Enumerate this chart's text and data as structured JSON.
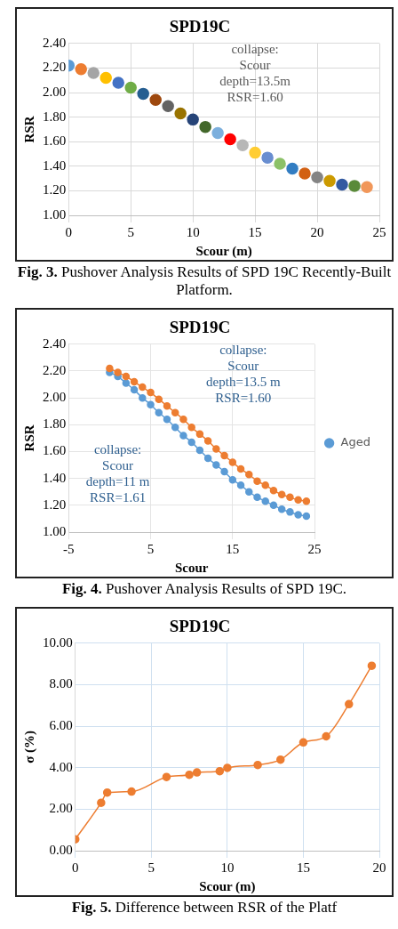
{
  "chart_data": [
    {
      "type": "scatter",
      "title": "SPD19C",
      "xlabel": "Scour (m)",
      "ylabel": "RSR",
      "x": [
        0,
        1,
        2,
        3,
        4,
        5,
        6,
        7,
        8,
        9,
        10,
        11,
        12,
        13,
        14,
        15,
        16,
        17,
        18,
        19,
        20,
        21,
        22,
        23,
        24
      ],
      "values": [
        2.22,
        2.19,
        2.16,
        2.12,
        2.08,
        2.04,
        1.99,
        1.94,
        1.89,
        1.83,
        1.78,
        1.72,
        1.67,
        1.62,
        1.57,
        1.51,
        1.47,
        1.42,
        1.38,
        1.34,
        1.31,
        1.28,
        1.25,
        1.24,
        1.23
      ],
      "colors": [
        "#5b9bd5",
        "#ed7d31",
        "#a5a5a5",
        "#ffc000",
        "#4472c4",
        "#70ad47",
        "#255e91",
        "#9e480e",
        "#636363",
        "#997300",
        "#264478",
        "#43682b",
        "#7cafdd",
        "#ff0000",
        "#b7b7b7",
        "#ffcd33",
        "#698ed0",
        "#8cc168",
        "#327dc2",
        "#d26012",
        "#848484",
        "#cc9a00",
        "#335aa1",
        "#5a8a39",
        "#f1975a"
      ],
      "xlim": [
        0,
        25
      ],
      "xticks": [
        0,
        5,
        10,
        15,
        20,
        25
      ],
      "ylim": [
        1,
        2.4
      ],
      "yticks": [
        {
          "value": 1,
          "label": "1.00"
        },
        {
          "value": 1.2,
          "label": "1.20"
        },
        {
          "value": 1.4,
          "label": "1.40"
        },
        {
          "value": 1.6,
          "label": "1.60"
        },
        {
          "value": 1.8,
          "label": "1.80"
        },
        {
          "value": 2,
          "label": "2.00"
        },
        {
          "value": 2.2,
          "label": "2.20"
        },
        {
          "value": 2.4,
          "label": "2.40"
        }
      ],
      "grid": true,
      "marker": "circle",
      "annotations": [
        "collapse: Scour depth=13.5m RSR=1.60",
        "Fig. 3. Pushover Analysis Results of SPD 19C Recently-Built Platform."
      ]
    },
    {
      "type": "line",
      "title": "SPD19C",
      "xlabel": "Scour",
      "ylabel": "RSR",
      "x": [
        0,
        1,
        2,
        3,
        4,
        5,
        6,
        7,
        8,
        9,
        10,
        11,
        12,
        13,
        14,
        15,
        16,
        17,
        18,
        19,
        20,
        21,
        22,
        23,
        24
      ],
      "series": [
        {
          "color": "#ed7d31",
          "values": [
            2.22,
            2.19,
            2.16,
            2.12,
            2.08,
            2.04,
            1.99,
            1.94,
            1.89,
            1.84,
            1.78,
            1.73,
            1.68,
            1.62,
            1.57,
            1.52,
            1.47,
            1.43,
            1.38,
            1.35,
            1.31,
            1.28,
            1.26,
            1.24,
            1.23
          ]
        },
        {
          "name": "Aged",
          "color": "#5b9bd5",
          "values": [
            2.19,
            2.16,
            2.11,
            2.06,
            2.0,
            1.95,
            1.89,
            1.84,
            1.78,
            1.72,
            1.67,
            1.61,
            1.55,
            1.5,
            1.45,
            1.39,
            1.35,
            1.3,
            1.26,
            1.23,
            1.2,
            1.17,
            1.15,
            1.13,
            1.12
          ]
        }
      ],
      "xlim": [
        -5,
        25
      ],
      "xticks": [
        -5,
        5,
        15,
        25
      ],
      "ylim": [
        1,
        2.4
      ],
      "yticks": [
        {
          "value": 1,
          "label": "1.00"
        },
        {
          "value": 1.2,
          "label": "1.20"
        },
        {
          "value": 1.4,
          "label": "1.40"
        },
        {
          "value": 1.6,
          "label": "1.60"
        },
        {
          "value": 1.8,
          "label": "1.80"
        },
        {
          "value": 2,
          "label": "2.00"
        },
        {
          "value": 2.2,
          "label": "2.20"
        },
        {
          "value": 2.4,
          "label": "2.40"
        }
      ],
      "grid": true,
      "legend": "right",
      "marker": "circle",
      "annotations": [
        "collapse: Scour depth=13.5 m RSR=1.60",
        "collapse: Scour depth=11 m RSR=1.61",
        "Fig. 4. Pushover Analysis Results of SPD 19C."
      ]
    },
    {
      "type": "line",
      "title": "SPD19C",
      "xlabel": "Scour (m)",
      "ylabel": "σ (%)",
      "x": [
        0,
        1.7,
        2.1,
        3.7,
        6,
        7.5,
        8,
        9.5,
        10,
        12,
        13.5,
        15,
        16.5,
        18,
        19.5
      ],
      "values": [
        0.55,
        2.31,
        2.8,
        2.85,
        3.55,
        3.66,
        3.77,
        3.83,
        3.99,
        4.13,
        4.39,
        5.22,
        5.51,
        7.06,
        8.91
      ],
      "color": "#ed7d31",
      "xlim": [
        0,
        20
      ],
      "xticks": [
        0,
        5,
        10,
        15,
        20
      ],
      "ylim": [
        0,
        10
      ],
      "yticks": [
        {
          "value": 0,
          "label": "0.00"
        },
        {
          "value": 2,
          "label": "2.00"
        },
        {
          "value": 4,
          "label": "4.00"
        },
        {
          "value": 6,
          "label": "6.00"
        },
        {
          "value": 8,
          "label": "8.00"
        },
        {
          "value": 10,
          "label": "10.00"
        }
      ],
      "grid": true,
      "marker": "circle",
      "annotations": [
        "Fig. 5. Difference between RSR of the Platf"
      ]
    }
  ]
}
